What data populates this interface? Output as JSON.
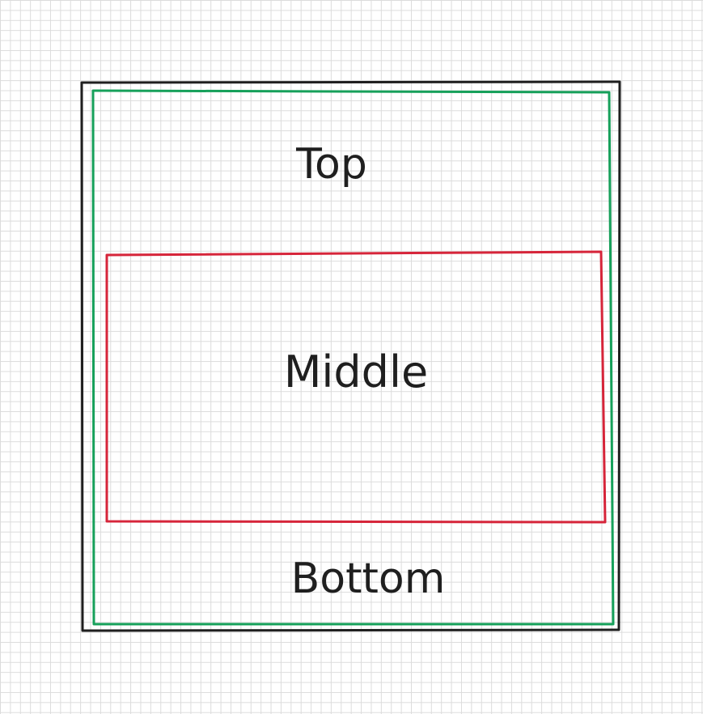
{
  "diagram": {
    "colors": {
      "grid": "#dcdcdc",
      "outer_box": "#1f1f1f",
      "green_box": "#16a05a",
      "red_box": "#d6253a",
      "text": "#1f1f1f"
    },
    "labels": {
      "top": "Top",
      "middle": "Middle",
      "bottom": "Bottom"
    }
  }
}
